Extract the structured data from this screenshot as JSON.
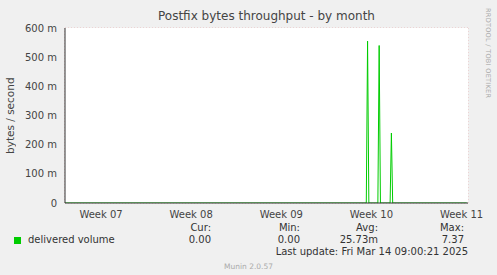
{
  "chart_data": {
    "type": "line",
    "title": "Postfix bytes throughput - by month",
    "y_label": "bytes / second",
    "x": [
      41.7,
      65.1,
      65.2,
      65.3,
      66.0,
      66.1,
      66.2,
      66.95,
      67.05,
      67.15,
      72.9
    ],
    "series": [
      {
        "name": "delivered volume",
        "color": "#00cc00",
        "values": [
          0,
          0,
          0.555,
          0,
          0,
          0.54,
          0,
          0,
          0.24,
          0,
          0
        ]
      }
    ],
    "xlim": [
      41.7,
      73
    ],
    "xticks": [
      {
        "value": 44.5,
        "label": "Week 07"
      },
      {
        "value": 51.5,
        "label": "Week 08"
      },
      {
        "value": 58.5,
        "label": "Week 09"
      },
      {
        "value": 65.5,
        "label": "Week 10"
      },
      {
        "value": 72.5,
        "label": "Week 11"
      }
    ],
    "ylim": [
      0,
      0.6
    ],
    "yticks": [
      0,
      {
        "value": 0.1,
        "label": "100 m"
      },
      {
        "value": 0.2,
        "label": "200 m"
      },
      {
        "value": 0.3,
        "label": "300 m"
      },
      {
        "value": 0.4,
        "label": "400 m"
      },
      {
        "value": 0.5,
        "label": "500 m"
      },
      {
        "value": 0.6,
        "label": "600 m"
      }
    ],
    "grid": true,
    "legend_stats": {
      "headers": [
        "Cur:",
        "Min:",
        "Avg:",
        "Max:"
      ],
      "values": [
        "0.00",
        "0.00",
        "25.73m",
        "7.37"
      ]
    },
    "last_update": "Last update: Fri Mar 14 09:00:21 2025",
    "footer": "Munin 2.0.57",
    "watermark": "RRDTOOL / TOBI OETIKER"
  }
}
